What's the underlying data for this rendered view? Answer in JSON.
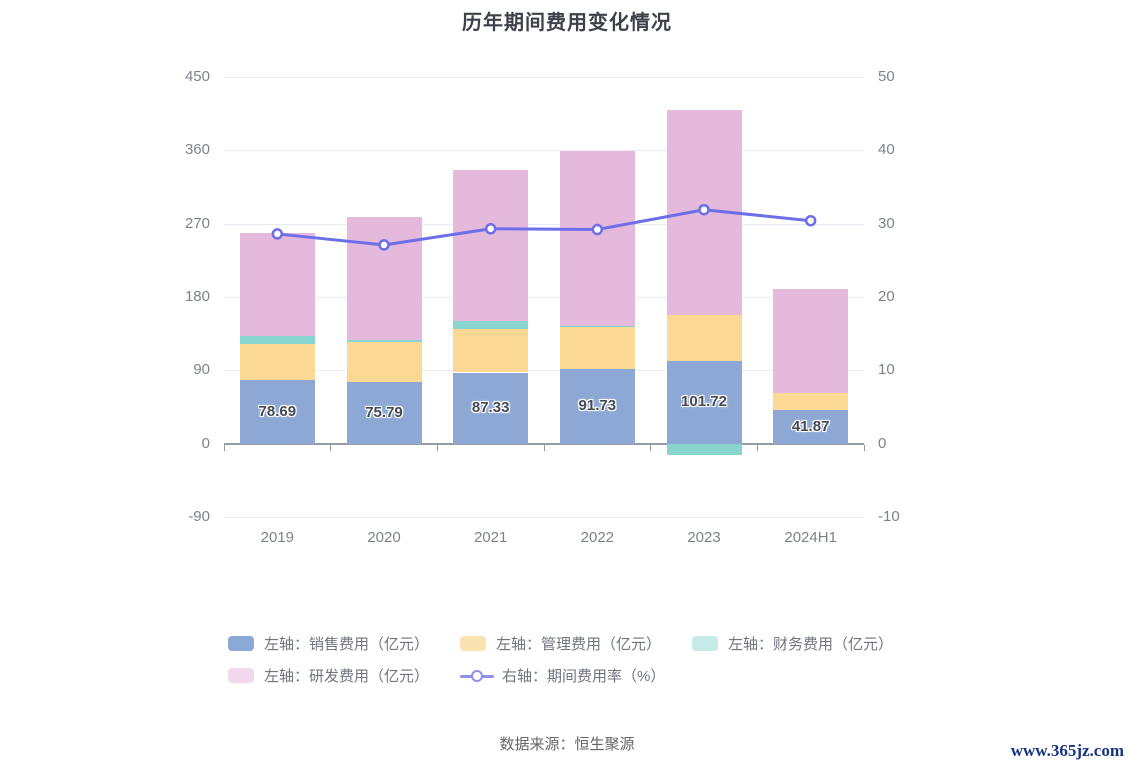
{
  "chart": {
    "title": "历年期间费用变化情况"
  },
  "footer": {
    "source": "数据来源：恒生聚源",
    "watermark": "www.365jz.com"
  },
  "chart_data": {
    "type": "bar",
    "subtype": "stacked-bars-with-line",
    "title": "历年期间费用变化情况",
    "categories": [
      "2019",
      "2020",
      "2021",
      "2022",
      "2023",
      "2024H1"
    ],
    "series": [
      {
        "key": "sales",
        "name": "左轴：销售费用（亿元）",
        "axis": "left",
        "stack": true,
        "color": "#8da8d5",
        "values": [
          78.69,
          75.79,
          87.33,
          91.73,
          101.72,
          41.87
        ],
        "labels_visible": true
      },
      {
        "key": "management",
        "name": "左轴：管理费用（亿元）",
        "axis": "left",
        "stack": true,
        "color": "#fbd995",
        "values": [
          44,
          49,
          53,
          51,
          56,
          20
        ],
        "labels_visible": false
      },
      {
        "key": "finance",
        "name": "左轴：财务费用（亿元）",
        "axis": "left",
        "stack": true,
        "color": "#87d5ce",
        "values": [
          10,
          3,
          10,
          2,
          -14,
          0
        ],
        "labels_visible": false
      },
      {
        "key": "rnd",
        "name": "左轴：研发费用（亿元）",
        "axis": "left",
        "stack": true,
        "color": "#e5b9dc",
        "values": [
          126,
          150,
          186,
          215,
          252,
          128
        ],
        "labels_visible": false
      }
    ],
    "line_series": {
      "key": "rate",
      "name": "右轴：期间费用率（%）",
      "axis": "right",
      "color": "#6e6ee8",
      "values": [
        28.6,
        27.1,
        29.3,
        29.2,
        31.9,
        30.4
      ]
    },
    "left_axis": {
      "min": -90,
      "max": 450,
      "ticks": [
        450,
        360,
        270,
        180,
        90,
        0,
        -90
      ]
    },
    "right_axis": {
      "min": -10,
      "max": 50,
      "ticks": [
        50,
        40,
        30,
        20,
        10,
        0,
        -10
      ]
    },
    "grid": true,
    "legend_position": "bottom",
    "legend": [
      {
        "key": "sales",
        "label": "左轴：销售费用（亿元）",
        "type": "bar",
        "swatch": "#8ca8d6"
      },
      {
        "key": "management",
        "label": "左轴：管理费用（亿元）",
        "type": "bar",
        "swatch": "#fbe3b1"
      },
      {
        "key": "finance",
        "label": "左轴：财务费用（亿元）",
        "type": "bar",
        "swatch": "#c6eae6"
      },
      {
        "key": "rnd",
        "label": "左轴：研发费用（亿元）",
        "type": "bar",
        "swatch": "#f0d9ec"
      },
      {
        "key": "rate",
        "label": "右轴：期间费用率（%）",
        "type": "line",
        "swatch": "#8f8fee"
      }
    ]
  }
}
